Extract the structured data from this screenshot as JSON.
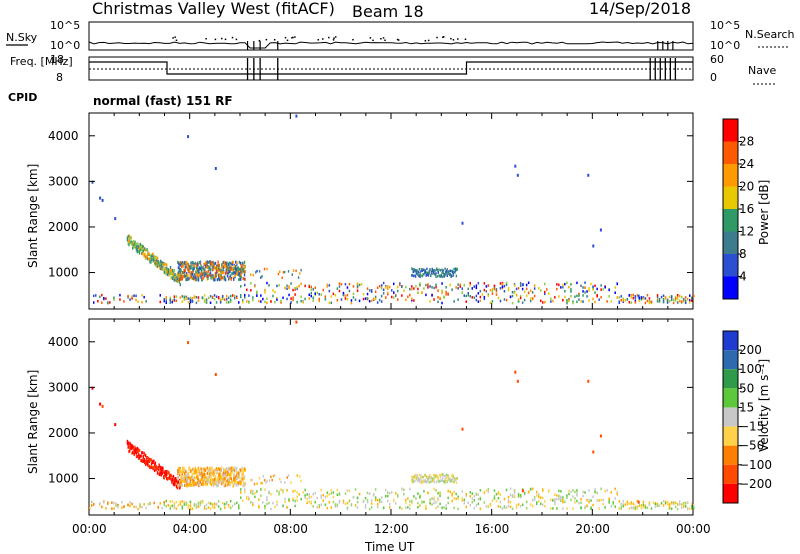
{
  "header": {
    "station": "Christmas Valley West (fitACF)",
    "beam": "Beam 18",
    "date": "14/Sep/2018",
    "cpid_label": "CPID",
    "cpid_value": "normal (fast) 151 RF"
  },
  "colors": {
    "power_scale": [
      "#0000ff",
      "#2a4fd0",
      "#3c7c8c",
      "#2f9a66",
      "#8fcc3c",
      "#e8c800",
      "#ff9a00",
      "#ff5a00",
      "#ff0000"
    ],
    "velocity_scale": [
      "#ff0000",
      "#ff4a00",
      "#ff8000",
      "#ffb400",
      "#ffd24a",
      "#c8c8c8",
      "#9ad46a",
      "#5cc83a",
      "#2e9a4a",
      "#2e6ab0",
      "#1e3cd0"
    ]
  },
  "chart_data": [
    {
      "type": "line",
      "panel": "noise",
      "left_label": "N.Sky",
      "right_label": "N.Search",
      "left_ticks": [
        "10^5",
        "10^0"
      ],
      "right_ticks": [
        "10^5",
        "10^0"
      ],
      "note": "noise level trace near bottom, small spikes through the day"
    },
    {
      "type": "line",
      "panel": "freq-nave",
      "left_label": "Freq. [MHz]",
      "right_label": "Nave",
      "left_ticks": [
        "18",
        "8"
      ],
      "right_ticks": [
        "60",
        "0"
      ],
      "freq_segments": [
        {
          "from_h": 0.0,
          "to_h": 3.1,
          "value": "high"
        },
        {
          "from_h": 3.1,
          "to_h": 15.0,
          "value": "low"
        },
        {
          "from_h": 15.0,
          "to_h": 24.0,
          "value": "high"
        }
      ]
    },
    {
      "type": "heatmap",
      "panel": "power",
      "ylabel": "Slant Range [km]",
      "yticks": [
        "1000",
        "2000",
        "3000",
        "4000"
      ],
      "ylim": [
        200,
        4500
      ],
      "xlim_hours": [
        0,
        24
      ],
      "colorbar_label": "Power [dB]",
      "colorbar_ticks": [
        "4",
        "8",
        "12",
        "16",
        "20",
        "24",
        "28"
      ]
    },
    {
      "type": "heatmap",
      "panel": "velocity",
      "ylabel": "Slant Range [km]",
      "yticks": [
        "1000",
        "2000",
        "3000",
        "4000"
      ],
      "ylim": [
        200,
        4500
      ],
      "xlim_hours": [
        0,
        24
      ],
      "xticks": [
        "00:00",
        "04:00",
        "08:00",
        "12:00",
        "16:00",
        "20:00",
        "00:00"
      ],
      "xlabel": "Time UT",
      "colorbar_label": "Velocity [m s⁻¹]",
      "colorbar_ticks": [
        "200",
        "100",
        "50",
        "15",
        "−15",
        "−50",
        "−100",
        "−200"
      ]
    }
  ]
}
